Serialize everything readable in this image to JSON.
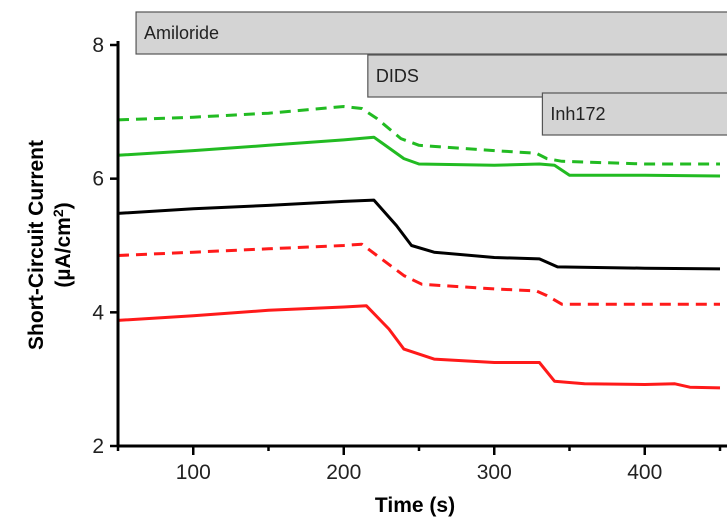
{
  "chart_data": {
    "type": "line",
    "xlabel": "Time (s)",
    "ylabel_line1": "Short-Circuit Current",
    "ylabel_line2_prefix": "(µA/cm",
    "ylabel_line2_sup": "2",
    "ylabel_line2_suffix": ")",
    "xlim": [
      50,
      450
    ],
    "ylim": [
      2,
      8
    ],
    "xticks": [
      100,
      200,
      300,
      400
    ],
    "yticks": [
      2,
      4,
      6,
      8
    ],
    "grid": false,
    "legend": "none",
    "treatments": [
      {
        "label": "Amiloride",
        "start": 62
      },
      {
        "label": "DIDS",
        "start": 216
      },
      {
        "label": "Inh172",
        "start": 332
      }
    ],
    "series": [
      {
        "color": "#22bb22",
        "dash": true,
        "x": [
          50,
          100,
          150,
          200,
          212,
          222,
          238,
          250,
          300,
          328,
          335,
          345,
          400,
          450
        ],
        "y": [
          6.88,
          6.92,
          6.98,
          7.08,
          7.05,
          6.9,
          6.6,
          6.5,
          6.42,
          6.38,
          6.3,
          6.26,
          6.22,
          6.22
        ]
      },
      {
        "color": "#22bb22",
        "dash": false,
        "x": [
          50,
          100,
          150,
          200,
          220,
          240,
          250,
          300,
          330,
          340,
          350,
          400,
          450
        ],
        "y": [
          6.35,
          6.42,
          6.5,
          6.58,
          6.62,
          6.3,
          6.22,
          6.2,
          6.22,
          6.2,
          6.05,
          6.05,
          6.04
        ]
      },
      {
        "color": "#000000",
        "dash": false,
        "x": [
          50,
          100,
          150,
          200,
          220,
          235,
          245,
          260,
          300,
          330,
          342,
          400,
          450
        ],
        "y": [
          5.48,
          5.55,
          5.6,
          5.66,
          5.68,
          5.3,
          5.0,
          4.9,
          4.82,
          4.8,
          4.68,
          4.66,
          4.65
        ]
      },
      {
        "color": "#ff1a1a",
        "dash": true,
        "x": [
          50,
          100,
          150,
          200,
          212,
          222,
          240,
          252,
          300,
          328,
          335,
          345,
          400,
          450
        ],
        "y": [
          4.85,
          4.9,
          4.95,
          5.0,
          5.02,
          4.85,
          4.55,
          4.42,
          4.35,
          4.32,
          4.25,
          4.12,
          4.12,
          4.12
        ]
      },
      {
        "color": "#ff1a1a",
        "dash": false,
        "x": [
          50,
          100,
          150,
          200,
          215,
          230,
          240,
          260,
          300,
          330,
          340,
          360,
          400,
          420,
          430,
          450
        ],
        "y": [
          3.88,
          3.95,
          4.03,
          4.08,
          4.1,
          3.75,
          3.45,
          3.3,
          3.25,
          3.25,
          2.97,
          2.93,
          2.92,
          2.93,
          2.88,
          2.87
        ]
      }
    ]
  }
}
